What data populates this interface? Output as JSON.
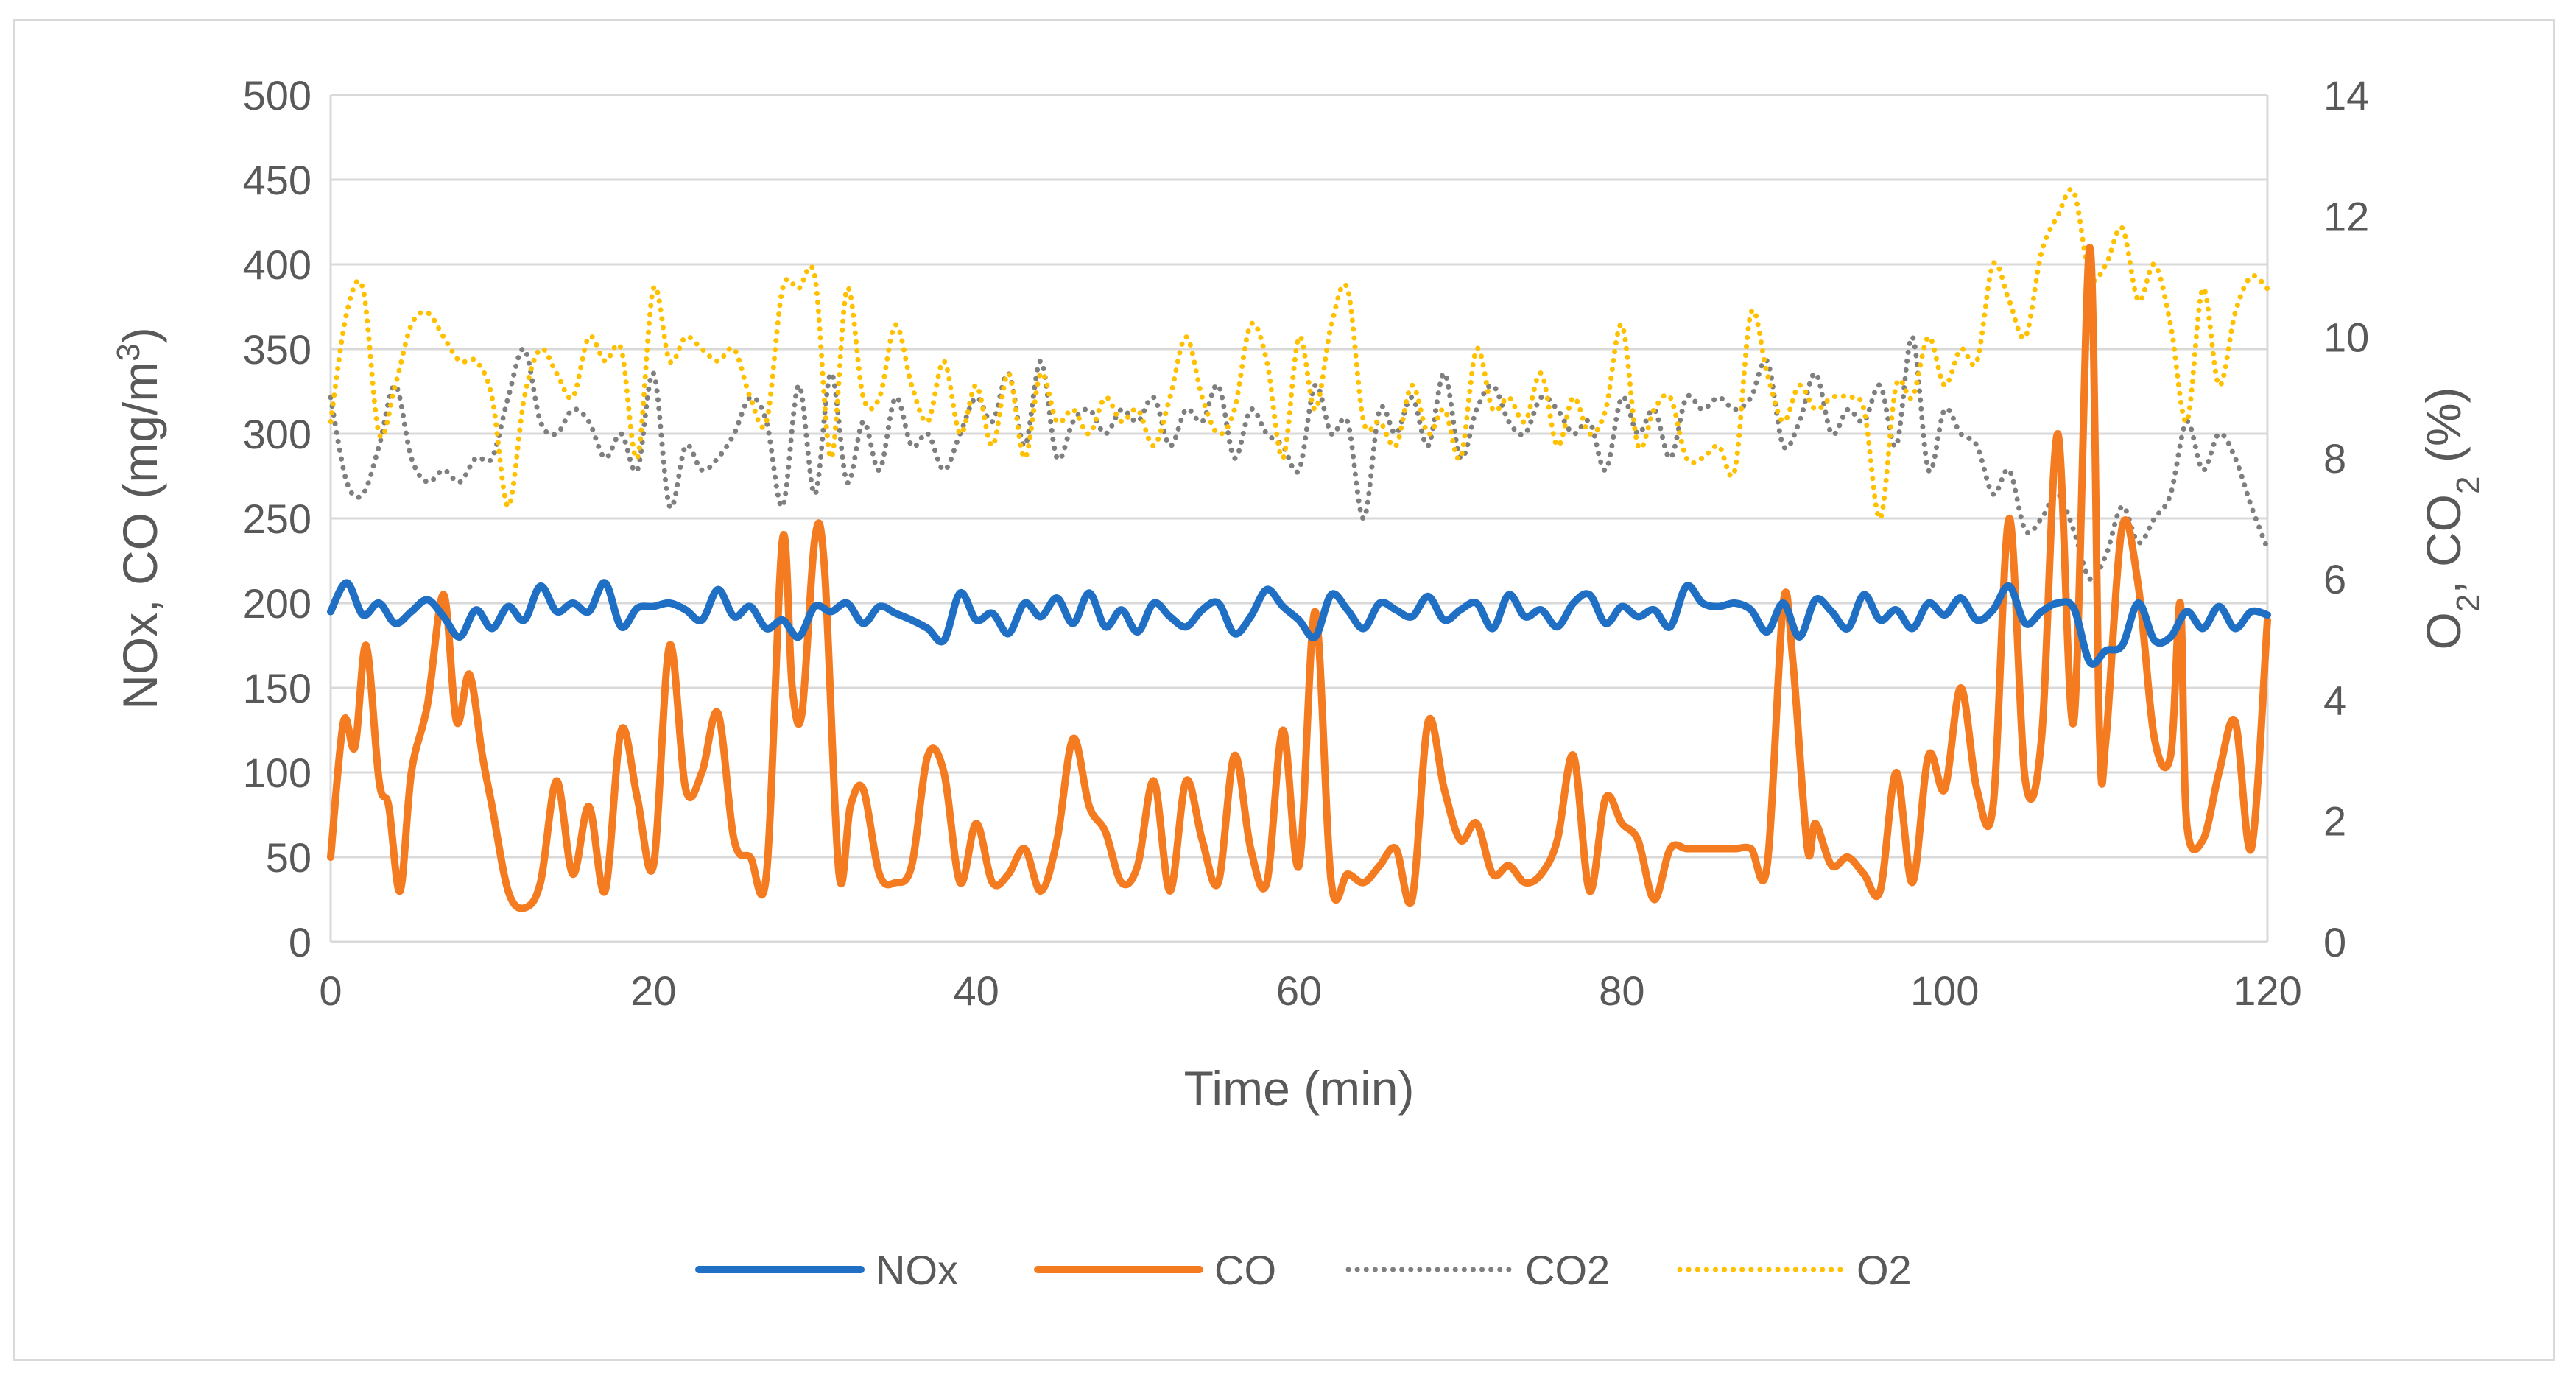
{
  "colors": {
    "nox": "#1f6fc5",
    "co": "#f47b20",
    "co2": "#7f7f7f",
    "o2": "#ffc000",
    "grid": "#d9d9d9",
    "text": "#595959"
  },
  "chart_data": {
    "type": "line",
    "title": "",
    "xlabel": "Time (min)",
    "ylabel_left": [
      "NOx, CO (mg/m",
      "3",
      ")"
    ],
    "ylabel_right": [
      "O",
      "2",
      ", CO",
      "2",
      " (%)"
    ],
    "xlim": [
      0,
      120
    ],
    "ylim_left": [
      0,
      500
    ],
    "ylim_right": [
      0,
      14
    ],
    "x_ticks": [
      "0",
      "20",
      "40",
      "60",
      "80",
      "100",
      "120"
    ],
    "y_left_ticks": [
      "0",
      "50",
      "100",
      "150",
      "200",
      "250",
      "300",
      "350",
      "400",
      "450",
      "500"
    ],
    "y_right_ticks": [
      "0",
      "2",
      "4",
      "6",
      "8",
      "10",
      "12",
      "14"
    ],
    "grid": "horizontal",
    "legend_position": "bottom",
    "series": [
      {
        "name": "NOx",
        "axis": "left",
        "style": "solid",
        "color_key": "nox",
        "x": [
          0,
          1,
          2,
          3,
          4,
          5,
          6,
          7,
          8,
          9,
          10,
          11,
          12,
          13,
          14,
          15,
          16,
          17,
          18,
          19,
          20,
          21,
          22,
          23,
          24,
          25,
          26,
          27,
          28,
          29,
          30,
          31,
          32,
          33,
          34,
          35,
          36,
          37,
          38,
          39,
          40,
          41,
          42,
          43,
          44,
          45,
          46,
          47,
          48,
          49,
          50,
          51,
          52,
          53,
          54,
          55,
          56,
          57,
          58,
          59,
          60,
          61,
          62,
          63,
          64,
          65,
          66,
          67,
          68,
          69,
          70,
          71,
          72,
          73,
          74,
          75,
          76,
          77,
          78,
          79,
          80,
          81,
          82,
          83,
          84,
          85,
          86,
          87,
          88,
          89,
          90,
          91,
          92,
          93,
          94,
          95,
          96,
          97,
          98,
          99,
          100,
          101,
          102,
          103,
          104,
          105,
          106,
          107,
          108,
          109,
          110,
          111,
          112,
          113,
          114,
          115,
          116,
          117,
          118,
          119,
          120
        ],
        "values": [
          195,
          212,
          193,
          200,
          188,
          195,
          202,
          192,
          180,
          196,
          185,
          198,
          190,
          210,
          195,
          200,
          195,
          212,
          186,
          197,
          198,
          200,
          196,
          190,
          208,
          192,
          198,
          185,
          190,
          180,
          198,
          195,
          200,
          188,
          198,
          194,
          190,
          185,
          178,
          206,
          190,
          194,
          182,
          200,
          192,
          203,
          188,
          206,
          186,
          196,
          183,
          200,
          192,
          186,
          196,
          200,
          182,
          192,
          208,
          198,
          190,
          180,
          205,
          196,
          185,
          200,
          196,
          192,
          204,
          190,
          196,
          200,
          185,
          205,
          192,
          196,
          186,
          200,
          205,
          188,
          198,
          192,
          196,
          186,
          210,
          200,
          198,
          200,
          196,
          183,
          200,
          180,
          202,
          195,
          185,
          205,
          190,
          196,
          185,
          200,
          193,
          203,
          190,
          196,
          210,
          188,
          195,
          200,
          197,
          165,
          172,
          175,
          200,
          178,
          180,
          195,
          185,
          198,
          185,
          195,
          193
        ]
      },
      {
        "name": "CO",
        "axis": "left",
        "style": "solid",
        "color_key": "co",
        "x": [
          0,
          0.8,
          1.5,
          2.2,
          3,
          3.6,
          4.3,
          5,
          6,
          7,
          7.8,
          8.6,
          9.4,
          10,
          11,
          12,
          13,
          14,
          15,
          16,
          17,
          18,
          19,
          20,
          21,
          22,
          23,
          24,
          25,
          26,
          27,
          28,
          28.6,
          29.2,
          30,
          30.6,
          31.5,
          32.2,
          33,
          34,
          35,
          36,
          37,
          38,
          39,
          40,
          41,
          42,
          43,
          44,
          45,
          46,
          47,
          48,
          49,
          50,
          51,
          52,
          53,
          54,
          55,
          56,
          57,
          58,
          59,
          60,
          61,
          62,
          63,
          64,
          65,
          66,
          67,
          68,
          69,
          70,
          71,
          72,
          73,
          74,
          75,
          76,
          77,
          78,
          79,
          80,
          81,
          82,
          83,
          84,
          85,
          86,
          87,
          88,
          89,
          90,
          90.6,
          91.5,
          92,
          93,
          94,
          95,
          96,
          97,
          98,
          99,
          100,
          101,
          102,
          103,
          104,
          105,
          106,
          107,
          108,
          109,
          109.6,
          110,
          111,
          112,
          113,
          114,
          114.6,
          115,
          116,
          117,
          118,
          119,
          120
        ],
        "values": [
          50,
          130,
          115,
          175,
          95,
          80,
          30,
          100,
          140,
          205,
          130,
          158,
          110,
          80,
          30,
          20,
          35,
          95,
          40,
          80,
          30,
          125,
          85,
          45,
          175,
          90,
          100,
          135,
          60,
          50,
          40,
          238,
          150,
          135,
          238,
          220,
          40,
          80,
          90,
          40,
          35,
          45,
          110,
          100,
          35,
          70,
          35,
          40,
          55,
          30,
          60,
          120,
          80,
          65,
          35,
          45,
          95,
          30,
          95,
          60,
          35,
          110,
          55,
          35,
          125,
          45,
          195,
          35,
          40,
          35,
          45,
          55,
          25,
          130,
          90,
          60,
          70,
          40,
          45,
          35,
          40,
          60,
          110,
          30,
          85,
          70,
          60,
          25,
          55,
          55,
          55,
          55,
          55,
          55,
          45,
          200,
          165,
          55,
          70,
          45,
          50,
          40,
          30,
          100,
          35,
          110,
          90,
          150,
          90,
          80,
          250,
          95,
          120,
          300,
          130,
          410,
          120,
          120,
          245,
          210,
          120,
          110,
          200,
          70,
          60,
          100,
          130,
          55,
          190
        ]
      },
      {
        "name": "CO2",
        "axis": "right",
        "style": "dotted",
        "color_key": "co2",
        "x": [
          0,
          1,
          2,
          3,
          4,
          5,
          6,
          7,
          8,
          9,
          10,
          11,
          12,
          13,
          14,
          15,
          16,
          17,
          18,
          19,
          20,
          21,
          22,
          23,
          24,
          25,
          26,
          27,
          28,
          29,
          30,
          31,
          32,
          33,
          34,
          35,
          36,
          37,
          38,
          39,
          40,
          41,
          42,
          43,
          44,
          45,
          46,
          47,
          48,
          49,
          50,
          51,
          52,
          53,
          54,
          55,
          56,
          57,
          58,
          59,
          60,
          61,
          62,
          63,
          64,
          65,
          66,
          67,
          68,
          69,
          70,
          71,
          72,
          73,
          74,
          75,
          76,
          77,
          78,
          79,
          80,
          81,
          82,
          83,
          84,
          85,
          86,
          87,
          88,
          89,
          90,
          91,
          92,
          93,
          94,
          95,
          96,
          97,
          98,
          99,
          100,
          101,
          102,
          103,
          104,
          105,
          106,
          107,
          108,
          109,
          110,
          111,
          112,
          113,
          114,
          115,
          116,
          117,
          118,
          119,
          120
        ],
        "values": [
          9.0,
          7.6,
          7.4,
          8.2,
          9.2,
          8.0,
          7.6,
          7.8,
          7.6,
          8.0,
          8.0,
          9.0,
          9.8,
          8.6,
          8.4,
          8.8,
          8.6,
          8.0,
          8.4,
          7.8,
          9.4,
          7.2,
          8.2,
          7.8,
          8.0,
          8.4,
          9.0,
          8.6,
          7.2,
          9.2,
          7.4,
          9.4,
          7.6,
          8.6,
          7.8,
          9.0,
          8.2,
          8.4,
          7.8,
          8.4,
          9.0,
          8.6,
          9.4,
          8.2,
          9.6,
          8.0,
          8.6,
          8.8,
          8.4,
          8.8,
          8.6,
          9.0,
          8.2,
          8.8,
          8.6,
          9.2,
          8.0,
          8.8,
          8.4,
          8.2,
          7.8,
          9.2,
          8.4,
          8.6,
          7.0,
          8.8,
          8.4,
          9.0,
          8.2,
          9.4,
          8.0,
          8.8,
          9.2,
          8.6,
          8.4,
          9.0,
          8.8,
          8.4,
          8.6,
          7.8,
          9.0,
          8.4,
          8.8,
          8.0,
          9.0,
          8.8,
          9.0,
          8.8,
          9.0,
          9.6,
          8.2,
          8.6,
          9.4,
          8.4,
          8.8,
          8.6,
          9.2,
          8.2,
          10.0,
          7.8,
          8.8,
          8.4,
          8.2,
          7.4,
          7.8,
          6.8,
          7.0,
          7.4,
          6.8,
          6.0,
          6.4,
          7.2,
          6.6,
          7.0,
          7.4,
          8.6,
          7.8,
          8.4,
          8.0,
          7.2,
          6.5
        ]
      },
      {
        "name": "O2",
        "axis": "right",
        "style": "dotted",
        "color_key": "o2",
        "x": [
          0,
          1,
          2,
          3,
          4,
          5,
          6,
          7,
          8,
          9,
          10,
          11,
          12,
          13,
          14,
          15,
          16,
          17,
          18,
          19,
          20,
          21,
          22,
          23,
          24,
          25,
          26,
          27,
          28,
          29,
          30,
          31,
          32,
          33,
          34,
          35,
          36,
          37,
          38,
          39,
          40,
          41,
          42,
          43,
          44,
          45,
          46,
          47,
          48,
          49,
          50,
          51,
          52,
          53,
          54,
          55,
          56,
          57,
          58,
          59,
          60,
          61,
          62,
          63,
          64,
          65,
          66,
          67,
          68,
          69,
          70,
          71,
          72,
          73,
          74,
          75,
          76,
          77,
          78,
          79,
          80,
          81,
          82,
          83,
          84,
          85,
          86,
          87,
          88,
          89,
          90,
          91,
          92,
          93,
          94,
          95,
          96,
          97,
          98,
          99,
          100,
          101,
          102,
          103,
          104,
          105,
          106,
          107,
          108,
          109,
          110,
          111,
          112,
          113,
          114,
          115,
          116,
          117,
          118,
          119,
          120
        ],
        "values": [
          8.6,
          10.4,
          10.8,
          8.4,
          9.2,
          10.2,
          10.4,
          10.0,
          9.6,
          9.6,
          9.0,
          7.2,
          9.0,
          9.8,
          9.4,
          9.0,
          10.0,
          9.6,
          9.8,
          8.0,
          10.8,
          9.6,
          10.0,
          9.8,
          9.6,
          9.8,
          9.0,
          8.6,
          10.8,
          10.8,
          11.0,
          8.0,
          10.8,
          9.0,
          9.0,
          10.2,
          9.2,
          8.6,
          9.6,
          8.4,
          9.2,
          8.2,
          9.4,
          8.0,
          9.4,
          8.6,
          8.8,
          8.4,
          9.0,
          8.6,
          8.8,
          8.2,
          9.0,
          10.0,
          9.0,
          8.4,
          8.8,
          10.2,
          9.6,
          8.0,
          10.0,
          8.8,
          10.2,
          10.8,
          8.6,
          8.6,
          8.2,
          9.2,
          8.4,
          8.8,
          8.0,
          9.8,
          8.8,
          9.0,
          8.6,
          9.4,
          8.2,
          9.0,
          8.4,
          8.8,
          10.2,
          8.2,
          8.8,
          9.0,
          8.0,
          8.0,
          8.2,
          7.8,
          10.4,
          9.4,
          8.6,
          9.2,
          8.8,
          9.0,
          9.0,
          8.8,
          7.0,
          9.2,
          9.0,
          10.0,
          9.2,
          9.8,
          9.6,
          11.2,
          10.6,
          10.0,
          11.4,
          12.0,
          12.4,
          11.0,
          11.2,
          11.8,
          10.6,
          11.2,
          10.2,
          8.6,
          10.8,
          9.2,
          10.4,
          11.0,
          10.8
        ]
      }
    ]
  }
}
